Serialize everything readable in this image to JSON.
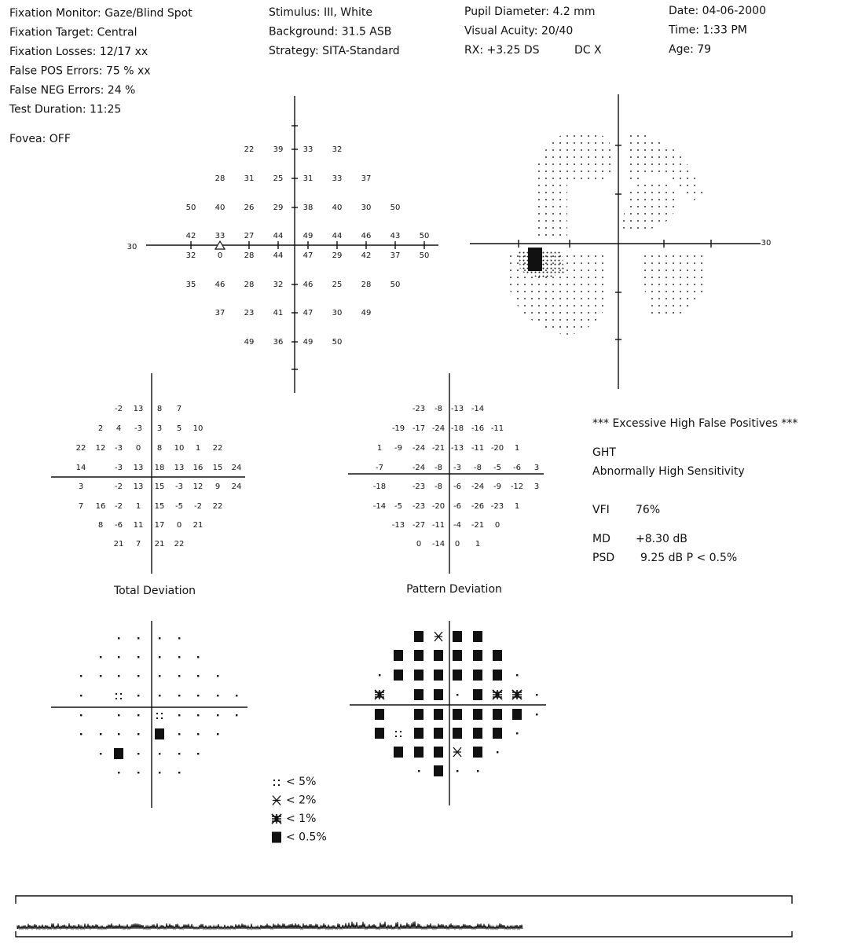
{
  "header": {
    "col1": [
      "Fixation Monitor: Gaze/Blind Spot",
      "Fixation Target: Central",
      "Fixation Losses: 12/17 xx",
      "False POS Errors:  75 % xx",
      "False NEG Errors:  24 %",
      "Test Duration: 11:25"
    ],
    "fovea": "Fovea: OFF",
    "col2": [
      "Stimulus: III, White",
      "Background: 31.5 ASB",
      "Strategy: SITA-Standard"
    ],
    "col3": [
      "Pupil Diameter: 4.2 mm",
      "Visual Acuity: 20/40",
      "RX: +3.25 DS"
    ],
    "dc": "DC  X",
    "col4": [
      "Date: 04-06-2000",
      "Time:  1:33 PM",
      "Age: 79"
    ]
  },
  "threshold": {
    "axis_label": "30",
    "rows": [
      [
        null,
        null,
        22,
        39,
        33,
        32,
        null,
        null,
        null
      ],
      [
        null,
        28,
        31,
        25,
        31,
        33,
        37,
        null,
        null
      ],
      [
        50,
        40,
        26,
        29,
        38,
        40,
        30,
        50,
        null
      ],
      [
        42,
        33,
        27,
        44,
        49,
        44,
        46,
        43,
        50
      ],
      [
        32,
        0,
        28,
        44,
        47,
        29,
        42,
        37,
        50
      ],
      [
        35,
        46,
        28,
        32,
        46,
        25,
        28,
        50,
        null
      ],
      [
        null,
        37,
        23,
        41,
        47,
        30,
        49,
        null,
        null
      ],
      [
        null,
        null,
        49,
        36,
        49,
        50,
        null,
        null,
        null
      ]
    ]
  },
  "grayscale": {
    "axis_label": "30"
  },
  "total_deviation": {
    "title": "Total Deviation",
    "rows": [
      [
        null,
        null,
        -2,
        13,
        8,
        7,
        null,
        null,
        null
      ],
      [
        null,
        2,
        4,
        -3,
        3,
        5,
        10,
        null,
        null
      ],
      [
        22,
        12,
        -3,
        0,
        8,
        10,
        1,
        22,
        null
      ],
      [
        14,
        null,
        -3,
        13,
        18,
        13,
        16,
        15,
        24
      ],
      [
        3,
        null,
        -2,
        13,
        15,
        -3,
        12,
        9,
        24
      ],
      [
        7,
        16,
        -2,
        1,
        15,
        -5,
        -2,
        22,
        null
      ],
      [
        null,
        8,
        -6,
        11,
        17,
        0,
        21,
        null,
        null
      ],
      [
        null,
        null,
        21,
        7,
        21,
        22,
        null,
        null,
        null
      ]
    ]
  },
  "pattern_deviation": {
    "title": "Pattern Deviation",
    "rows": [
      [
        null,
        null,
        -23,
        -8,
        -13,
        -14,
        null,
        null,
        null
      ],
      [
        null,
        -19,
        -17,
        -24,
        -18,
        -16,
        -11,
        null,
        null
      ],
      [
        1,
        -9,
        -24,
        -21,
        -13,
        -11,
        -20,
        1,
        null
      ],
      [
        -7,
        null,
        -24,
        -8,
        -3,
        -8,
        -5,
        -6,
        3
      ],
      [
        -18,
        null,
        -23,
        -8,
        -6,
        -24,
        -9,
        -12,
        3
      ],
      [
        -14,
        -5,
        -23,
        -20,
        -6,
        -26,
        -23,
        1,
        null
      ],
      [
        null,
        -13,
        -27,
        -11,
        -4,
        -21,
        0,
        null,
        null
      ],
      [
        null,
        null,
        0,
        -14,
        0,
        1,
        null,
        null,
        null
      ]
    ]
  },
  "legend": [
    "< 5%",
    "< 2%",
    "< 1%",
    "< 0.5%"
  ],
  "summary": {
    "warning": "*** Excessive High False Positives ***",
    "ght_label": "GHT",
    "ght": "Abnormally High Sensitivity",
    "vfi_label": "VFI",
    "vfi": "76%",
    "md_label": "MD",
    "md": "+8.30 dB",
    "psd_label": "PSD",
    "psd": "9.25 dB  P < 0.5%"
  }
}
